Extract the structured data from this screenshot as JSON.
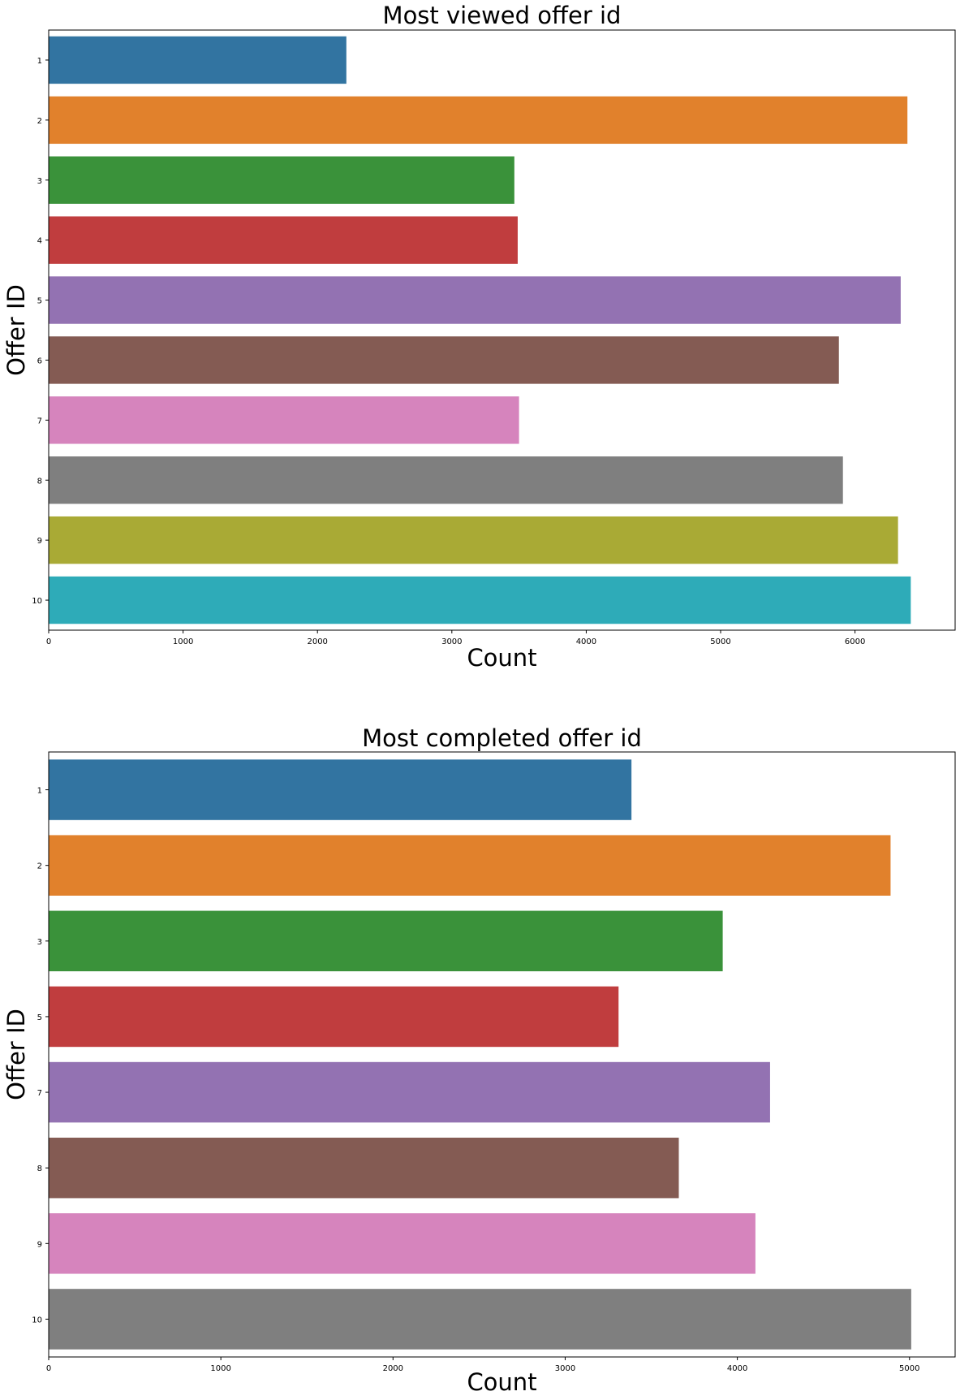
{
  "chart_data": [
    {
      "type": "bar",
      "orientation": "horizontal",
      "title": "Most viewed offer id",
      "xlabel": "Count",
      "ylabel": "Offer ID",
      "categories": [
        "1",
        "2",
        "3",
        "4",
        "5",
        "6",
        "7",
        "8",
        "9",
        "10"
      ],
      "values": [
        2215,
        6390,
        3465,
        3490,
        6340,
        5880,
        3500,
        5910,
        6320,
        6415
      ],
      "xlim": [
        0,
        6745
      ],
      "xticks": [
        "0",
        "1000",
        "2000",
        "3000",
        "4000",
        "5000",
        "6000"
      ],
      "colors": [
        "#3274a1",
        "#e1812c",
        "#3a923a",
        "#c03d3e",
        "#9372b2",
        "#845b53",
        "#d684bd",
        "#7f7f7f",
        "#a9aa35",
        "#2eabb8"
      ],
      "grid": false,
      "legend": "none"
    },
    {
      "type": "bar",
      "orientation": "horizontal",
      "title": "Most completed offer id",
      "xlabel": "Count",
      "ylabel": "Offer ID",
      "categories": [
        "1",
        "2",
        "3",
        "5",
        "7",
        "8",
        "9",
        "10"
      ],
      "values": [
        3385,
        4890,
        3915,
        3310,
        4190,
        3660,
        4105,
        5010
      ],
      "xlim": [
        0,
        5265
      ],
      "xticks": [
        "0",
        "1000",
        "2000",
        "3000",
        "4000",
        "5000"
      ],
      "colors": [
        "#3274a1",
        "#e1812c",
        "#3a923a",
        "#c03d3e",
        "#9372b2",
        "#845b53",
        "#d684bd",
        "#7f7f7f"
      ],
      "grid": false,
      "legend": "none"
    }
  ]
}
